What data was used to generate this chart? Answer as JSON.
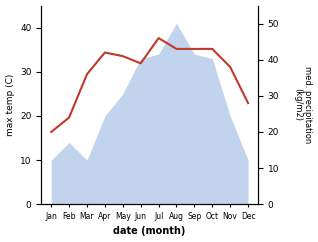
{
  "months": [
    "Jan",
    "Feb",
    "Mar",
    "Apr",
    "May",
    "Jun",
    "Jul",
    "Aug",
    "Sep",
    "Oct",
    "Nov",
    "Dec"
  ],
  "temp_values": [
    20,
    24,
    36,
    42,
    41,
    39,
    46,
    43,
    43,
    43,
    38,
    28
  ],
  "precip_values": [
    10,
    14,
    10,
    20,
    25,
    33,
    34,
    41,
    34,
    33,
    20,
    10
  ],
  "temp_color": "#c0392b",
  "precip_color": "#aec6e8",
  "precip_alpha": 0.75,
  "temp_ylim": [
    0,
    55
  ],
  "precip_ylim": [
    0,
    45
  ],
  "temp_yticks": [
    0,
    10,
    20,
    30,
    40,
    50
  ],
  "precip_yticks": [
    0,
    10,
    20,
    30,
    40
  ],
  "xlabel": "date (month)",
  "ylabel_left": "max temp (C)",
  "ylabel_right": "med. precipitation\n(kg/m2)",
  "title": ""
}
